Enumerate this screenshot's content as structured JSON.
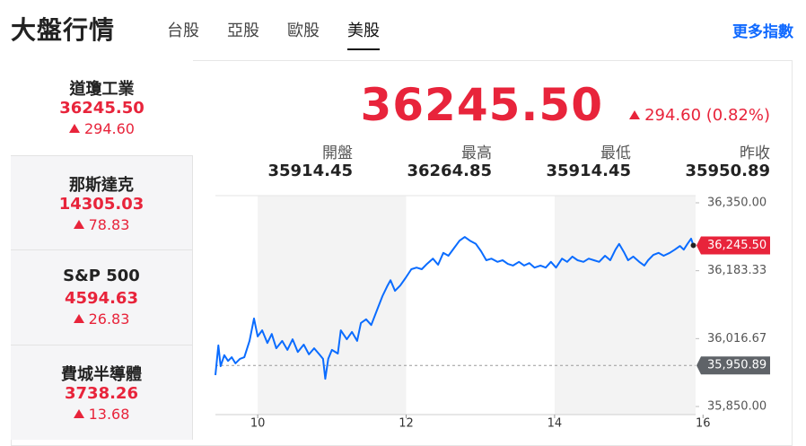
{
  "header": {
    "title": "大盤行情",
    "tabs": [
      "台股",
      "亞股",
      "歐股",
      "美股"
    ],
    "active_tab": 3,
    "more_link": "更多指數"
  },
  "indices": {
    "selected": 0,
    "items": [
      {
        "name": "道瓊工業",
        "price": "36245.50",
        "change": "294.60"
      },
      {
        "name": "那斯達克",
        "price": "14305.03",
        "change": "78.83"
      },
      {
        "name": "S&P 500",
        "price": "4594.63",
        "change": "26.83"
      },
      {
        "name": "費城半導體",
        "price": "3738.26",
        "change": "13.68"
      }
    ]
  },
  "quote": {
    "price": "36245.50",
    "change": "294.60 (0.82%)",
    "stats": [
      {
        "label": "開盤",
        "value": "35914.45"
      },
      {
        "label": "最高",
        "value": "36264.85"
      },
      {
        "label": "最低",
        "value": "35914.45"
      },
      {
        "label": "昨收",
        "value": "35950.89"
      }
    ]
  },
  "chart_data": {
    "type": "line",
    "color": "#0a6cff",
    "x": [
      9.43,
      9.47,
      9.5,
      9.55,
      9.6,
      9.65,
      9.7,
      9.76,
      9.82,
      9.89,
      9.95,
      10.0,
      10.06,
      10.13,
      10.19,
      10.25,
      10.33,
      10.4,
      10.47,
      10.54,
      10.62,
      10.69,
      10.76,
      10.83,
      10.88,
      10.91,
      10.95,
      11.0,
      11.08,
      11.12,
      11.2,
      11.27,
      11.34,
      11.39,
      11.46,
      11.53,
      11.61,
      11.68,
      11.75,
      11.79,
      11.85,
      11.92,
      11.99,
      12.07,
      12.14,
      12.21,
      12.28,
      12.36,
      12.43,
      12.5,
      12.57,
      12.65,
      12.72,
      12.79,
      12.86,
      12.94,
      13.01,
      13.08,
      13.15,
      13.23,
      13.3,
      13.37,
      13.44,
      13.52,
      13.59,
      13.66,
      13.73,
      13.81,
      13.88,
      13.95,
      14.02,
      14.1,
      14.17,
      14.24,
      14.31,
      14.39,
      14.46,
      14.53,
      14.6,
      14.68,
      14.75,
      14.82,
      14.87,
      14.94,
      14.99,
      15.06,
      15.14,
      15.21,
      15.26,
      15.33,
      15.4,
      15.47,
      15.55,
      15.62,
      15.69,
      15.74,
      15.79,
      15.84,
      15.87
    ],
    "values": [
      35927,
      36000,
      35949,
      35976,
      35962,
      35971,
      35956,
      35967,
      35971,
      36011,
      36066,
      36022,
      36037,
      36006,
      36028,
      35993,
      36011,
      35989,
      36015,
      35984,
      36002,
      35978,
      35993,
      35978,
      35967,
      35918,
      35967,
      35989,
      35980,
      36037,
      36015,
      36033,
      36011,
      36055,
      36064,
      36050,
      36088,
      36121,
      36147,
      36160,
      36134,
      36147,
      36165,
      36187,
      36191,
      36187,
      36200,
      36213,
      36198,
      36227,
      36220,
      36240,
      36257,
      36266,
      36257,
      36249,
      36231,
      36209,
      36213,
      36205,
      36209,
      36200,
      36196,
      36205,
      36196,
      36202,
      36191,
      36196,
      36191,
      36205,
      36191,
      36213,
      36205,
      36218,
      36209,
      36205,
      36213,
      36209,
      36205,
      36220,
      36209,
      36235,
      36249,
      36227,
      36209,
      36218,
      36205,
      36196,
      36209,
      36222,
      36227,
      36220,
      36227,
      36235,
      36244,
      36235,
      36249,
      36262,
      36245.5
    ],
    "xlim": [
      9.43,
      15.9
    ],
    "ylim": [
      35830.2,
      36367.6
    ],
    "xticks": [
      10,
      12,
      14,
      16
    ],
    "yticks": [
      {
        "value": 36350,
        "label": "36,350.00"
      },
      {
        "value": 36183.33,
        "label": "36,183.33"
      },
      {
        "value": 36016.67,
        "label": "36,016.67"
      },
      {
        "value": 35850,
        "label": "35,850.00"
      }
    ],
    "reference_line": {
      "value": 35950.89,
      "label": "35,950.89"
    },
    "last_label": {
      "value": 36245.5,
      "label": "36,245.50"
    }
  }
}
